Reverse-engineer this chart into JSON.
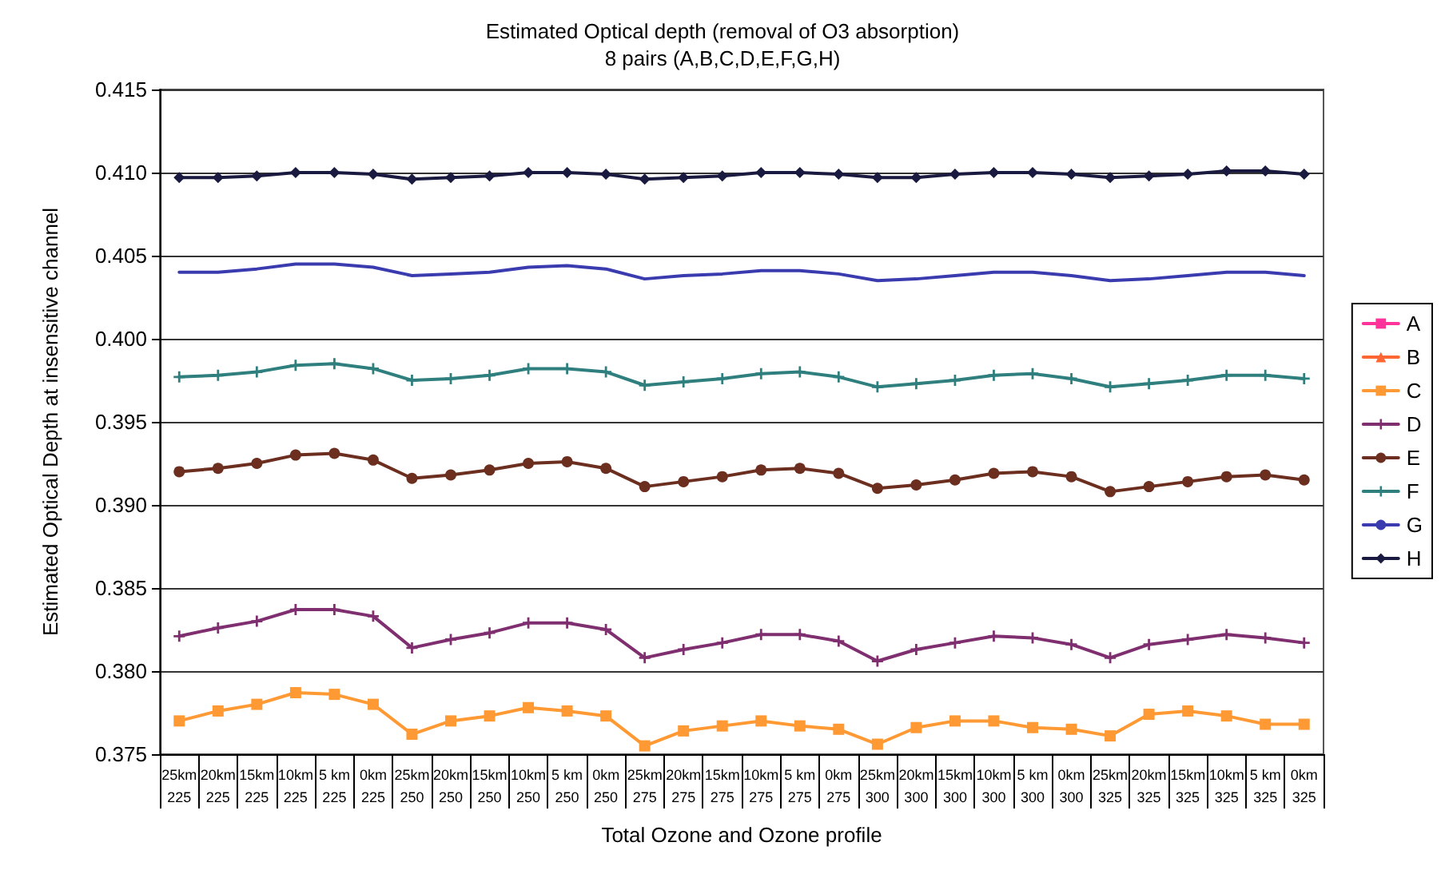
{
  "chart_data": {
    "type": "line",
    "title": "Estimated Optical depth (removal of O3 absorption)",
    "subtitle": "8 pairs (A,B,C,D,E,F,G,H)",
    "xlabel": "Total Ozone and Ozone profile",
    "ylabel": "Estimated Optical Depth at insensitive channel",
    "categories": [
      "25km\n225",
      "20km\n225",
      "15km\n225",
      "10km\n225",
      "5 km\n225",
      "0km\n225",
      "25km\n250",
      "20km\n250",
      "15km\n250",
      "10km\n250",
      "5 km\n250",
      "0km\n250",
      "25km\n275",
      "20km\n275",
      "15km\n275",
      "10km\n275",
      "5 km\n275",
      "0km\n275",
      "25km\n300",
      "20km\n300",
      "15km\n300",
      "10km\n300",
      "5 km\n300",
      "0km\n300",
      "25km\n325",
      "20km\n325",
      "15km\n325",
      "10km\n325",
      "5 km\n325",
      "0km\n325"
    ],
    "series": [
      {
        "name": "A",
        "color": "#ff3399",
        "marker": "square",
        "values": [
          null,
          null,
          null,
          null,
          null,
          null,
          null,
          null,
          null,
          null,
          null,
          null,
          null,
          null,
          null,
          null,
          null,
          null,
          null,
          null,
          null,
          null,
          null,
          null,
          null,
          null,
          null,
          null,
          null,
          null
        ]
      },
      {
        "name": "B",
        "color": "#ff6633",
        "marker": "triangle",
        "values": [
          null,
          null,
          null,
          null,
          null,
          null,
          null,
          null,
          null,
          null,
          null,
          null,
          null,
          null,
          null,
          null,
          null,
          null,
          null,
          null,
          null,
          null,
          null,
          null,
          null,
          null,
          null,
          null,
          null,
          null
        ]
      },
      {
        "name": "C",
        "color": "#ff9933",
        "marker": "square",
        "values": [
          0.377,
          0.3776,
          0.378,
          0.3787,
          0.3786,
          0.378,
          0.3762,
          0.377,
          0.3773,
          0.3778,
          0.3776,
          0.3773,
          0.3755,
          0.3764,
          0.3767,
          0.377,
          0.3767,
          0.3765,
          0.3756,
          0.3766,
          0.377,
          0.377,
          0.3766,
          0.3765,
          0.3761,
          0.3774,
          0.3776,
          0.3773,
          0.3768,
          0.3768
        ]
      },
      {
        "name": "D",
        "color": "#7f2f6f",
        "marker": "cross",
        "values": [
          0.3821,
          0.3826,
          0.383,
          0.3837,
          0.3837,
          0.3833,
          0.3814,
          0.3819,
          0.3823,
          0.3829,
          0.3829,
          0.3825,
          0.3808,
          0.3813,
          0.3817,
          0.3822,
          0.3822,
          0.3818,
          0.3806,
          0.3813,
          0.3817,
          0.3821,
          0.382,
          0.3816,
          0.3808,
          0.3816,
          0.3819,
          0.3822,
          0.382,
          0.3817
        ]
      },
      {
        "name": "E",
        "color": "#6b2e1f",
        "marker": "circle",
        "values": [
          0.392,
          0.3922,
          0.3925,
          0.393,
          0.3931,
          0.3927,
          0.3916,
          0.3918,
          0.3921,
          0.3925,
          0.3926,
          0.3922,
          0.3911,
          0.3914,
          0.3917,
          0.3921,
          0.3922,
          0.3919,
          0.391,
          0.3912,
          0.3915,
          0.3919,
          0.392,
          0.3917,
          0.3908,
          0.3911,
          0.3914,
          0.3917,
          0.3918,
          0.3915
        ]
      },
      {
        "name": "F",
        "color": "#2f7f7f",
        "marker": "cross",
        "values": [
          0.3977,
          0.3978,
          0.398,
          0.3984,
          0.3985,
          0.3982,
          0.3975,
          0.3976,
          0.3978,
          0.3982,
          0.3982,
          0.398,
          0.3972,
          0.3974,
          0.3976,
          0.3979,
          0.398,
          0.3977,
          0.3971,
          0.3973,
          0.3975,
          0.3978,
          0.3979,
          0.3976,
          0.3971,
          0.3973,
          0.3975,
          0.3978,
          0.3978,
          0.3976
        ]
      },
      {
        "name": "G",
        "color": "#3b3bb0",
        "marker": "none",
        "values": [
          0.404,
          0.404,
          0.4042,
          0.4045,
          0.4045,
          0.4043,
          0.4038,
          0.4039,
          0.404,
          0.4043,
          0.4044,
          0.4042,
          0.4036,
          0.4038,
          0.4039,
          0.4041,
          0.4041,
          0.4039,
          0.4035,
          0.4036,
          0.4038,
          0.404,
          0.404,
          0.4038,
          0.4035,
          0.4036,
          0.4038,
          0.404,
          0.404,
          0.4038
        ]
      },
      {
        "name": "H",
        "color": "#1a1a40",
        "marker": "diamond",
        "values": [
          0.4097,
          0.4097,
          0.4098,
          0.41,
          0.41,
          0.4099,
          0.4096,
          0.4097,
          0.4098,
          0.41,
          0.41,
          0.4099,
          0.4096,
          0.4097,
          0.4098,
          0.41,
          0.41,
          0.4099,
          0.4097,
          0.4097,
          0.4099,
          0.41,
          0.41,
          0.4099,
          0.4097,
          0.4098,
          0.4099,
          0.4101,
          0.4101,
          0.4099
        ]
      }
    ],
    "ylim": [
      0.375,
      0.415
    ],
    "yticks": [
      {
        "value": 0.375,
        "label": "0.375"
      },
      {
        "value": 0.38,
        "label": "0.380"
      },
      {
        "value": 0.385,
        "label": "0.385"
      },
      {
        "value": 0.39,
        "label": "0.390"
      },
      {
        "value": 0.395,
        "label": "0.395"
      },
      {
        "value": 0.4,
        "label": "0.400"
      },
      {
        "value": 0.405,
        "label": "0.405"
      },
      {
        "value": 0.41,
        "label": "0.410"
      },
      {
        "value": 0.415,
        "label": "0.415"
      }
    ],
    "grid": "y",
    "legend": "right"
  }
}
